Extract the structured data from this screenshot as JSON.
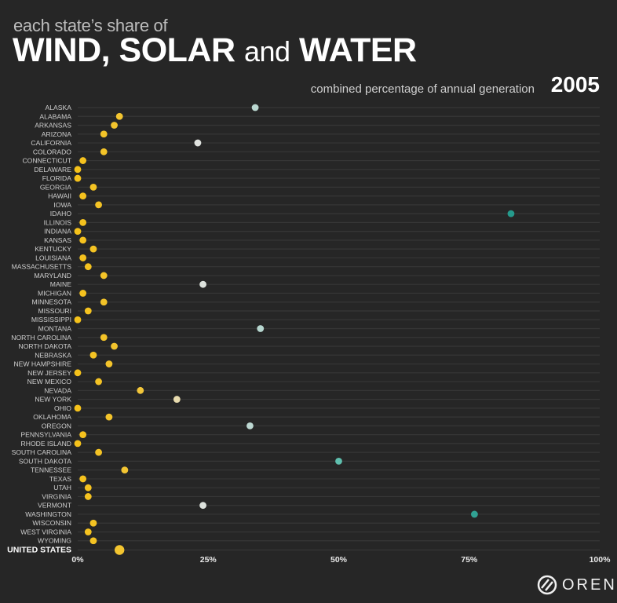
{
  "header": {
    "subtitle": "each state’s share of",
    "title_part1": "WIND, SOLAR",
    "title_and": "and",
    "title_part2": "WATER",
    "caption": "combined percentage of annual generation",
    "year": "2005"
  },
  "logo": {
    "text": "OREN"
  },
  "chart_data": {
    "type": "scatter",
    "title": "WIND, SOLAR and WATER",
    "xlabel": "combined percentage of annual generation",
    "xlim": [
      0,
      100
    ],
    "x_ticks": [
      "0%",
      "25%",
      "50%",
      "75%",
      "100%"
    ],
    "x_tick_values": [
      0,
      25,
      50,
      75,
      100
    ],
    "grid": true,
    "color_scale": [
      {
        "value": 0,
        "color": "#f5c21b"
      },
      {
        "value": 12,
        "color": "#f2c63a"
      },
      {
        "value": 22,
        "color": "#e4e4e0"
      },
      {
        "value": 35,
        "color": "#b6d6cf"
      },
      {
        "value": 50,
        "color": "#5fbfae"
      },
      {
        "value": 83,
        "color": "#259a8c"
      }
    ],
    "categories": [
      "ALASKA",
      "ALABAMA",
      "ARKANSAS",
      "ARIZONA",
      "CALIFORNIA",
      "COLORADO",
      "CONNECTICUT",
      "DELAWARE",
      "FLORIDA",
      "GEORGIA",
      "HAWAII",
      "IOWA",
      "IDAHO",
      "ILLINOIS",
      "INDIANA",
      "KANSAS",
      "KENTUCKY",
      "LOUISIANA",
      "MASSACHUSETTS",
      "MARYLAND",
      "MAINE",
      "MICHIGAN",
      "MINNESOTA",
      "MISSOURI",
      "MISSISSIPPI",
      "MONTANA",
      "NORTH CAROLINA",
      "NORTH DAKOTA",
      "NEBRASKA",
      "NEW HAMPSHIRE",
      "NEW JERSEY",
      "NEW MEXICO",
      "NEVADA",
      "NEW YORK",
      "OHIO",
      "OKLAHOMA",
      "OREGON",
      "PENNSYLVANIA",
      "RHODE ISLAND",
      "SOUTH CAROLINA",
      "SOUTH DAKOTA",
      "TENNESSEE",
      "TEXAS",
      "UTAH",
      "VIRGINIA",
      "VERMONT",
      "WASHINGTON",
      "WISCONSIN",
      "WEST VIRGINIA",
      "WYOMING"
    ],
    "values": [
      34,
      8,
      7,
      5,
      23,
      5,
      1,
      0,
      0,
      3,
      1,
      4,
      83,
      1,
      0,
      1,
      3,
      1,
      2,
      5,
      24,
      1,
      5,
      2,
      0,
      35,
      5,
      7,
      3,
      6,
      0,
      4,
      12,
      19,
      0,
      6,
      33,
      1,
      0,
      4,
      50,
      9,
      1,
      2,
      2,
      24,
      76,
      3,
      2,
      3
    ],
    "total": {
      "label": "UNITED STATES",
      "value": 8
    }
  }
}
